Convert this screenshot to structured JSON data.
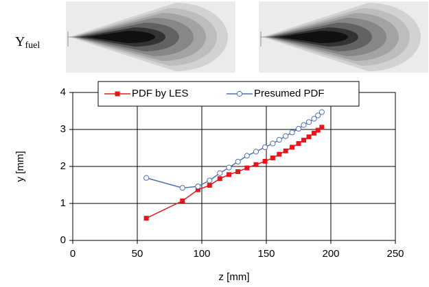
{
  "image_label": {
    "main": "Y",
    "sub": "fuel"
  },
  "chart_data": {
    "type": "line",
    "x_label": "z [mm]",
    "y_label": "y [mm]",
    "x": [
      57,
      85,
      97,
      106,
      114,
      121,
      128,
      135,
      142,
      149,
      155,
      160,
      165,
      170,
      175,
      179,
      183,
      187,
      190,
      193
    ],
    "series": [
      {
        "name": "PDF by LES",
        "color": "#e8161b",
        "marker": "square",
        "values": [
          0.6,
          1.07,
          1.37,
          1.49,
          1.67,
          1.78,
          1.86,
          1.96,
          2.05,
          2.14,
          2.23,
          2.33,
          2.42,
          2.52,
          2.62,
          2.71,
          2.8,
          2.9,
          2.98,
          3.06
        ]
      },
      {
        "name": "Presumed PDF",
        "color": "#4a72b0",
        "marker": "circle",
        "values": [
          1.69,
          1.42,
          1.46,
          1.62,
          1.82,
          1.97,
          2.13,
          2.29,
          2.4,
          2.52,
          2.62,
          2.72,
          2.82,
          2.92,
          3.02,
          3.12,
          3.2,
          3.29,
          3.38,
          3.47
        ]
      }
    ],
    "xlim": [
      0,
      250
    ],
    "xticks": [
      0,
      50,
      100,
      150,
      200,
      250
    ],
    "ylim": [
      0,
      4
    ],
    "yticks": [
      0,
      1,
      2,
      3,
      4
    ],
    "grid": true,
    "legend": "top"
  }
}
